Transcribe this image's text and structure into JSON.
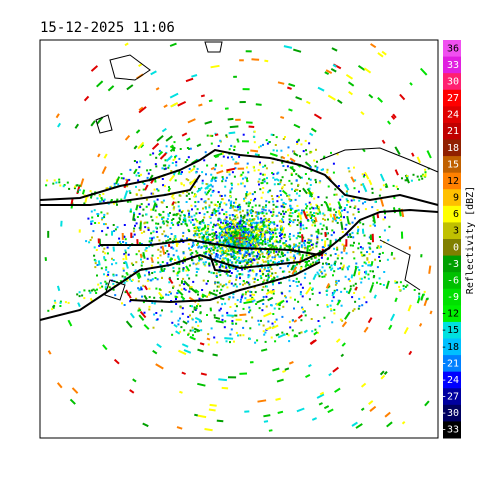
{
  "header": {
    "timestamp": "15-12-2025 11:06"
  },
  "colorbar": {
    "title": "Reflectivity [dBZ]",
    "labels": [
      36,
      33,
      30,
      27,
      24,
      21,
      18,
      15,
      12,
      9,
      6,
      3,
      0,
      -3,
      -6,
      -9,
      -12,
      -15,
      -18,
      -21,
      -24,
      -27,
      -30,
      -33
    ],
    "colors": [
      "#f050f0",
      "#e020e0",
      "#ff2070",
      "#ff0000",
      "#e00000",
      "#c00000",
      "#902000",
      "#c06000",
      "#ff8000",
      "#ffc000",
      "#ffff00",
      "#c0c000",
      "#808000",
      "#00a000",
      "#00c000",
      "#00e000",
      "#00f000",
      "#00e0e0",
      "#00c0ff",
      "#0080ff",
      "#0000ff",
      "#0000a0",
      "#000060",
      "#000000"
    ]
  }
}
